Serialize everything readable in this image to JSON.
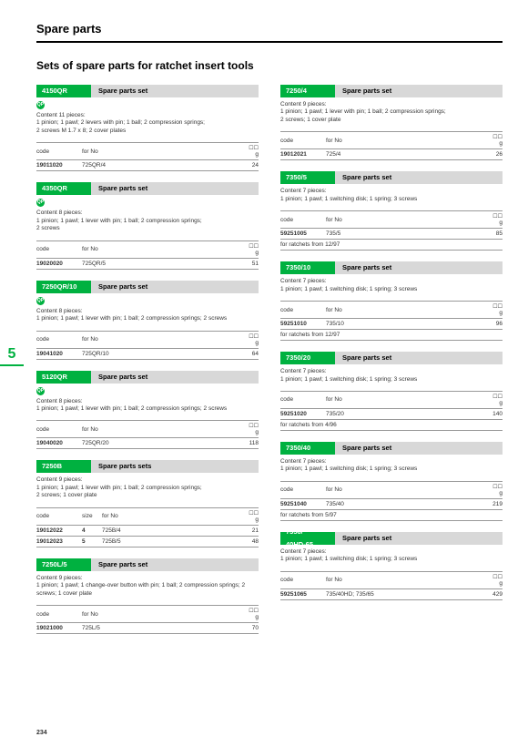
{
  "page_title": "Spare parts",
  "section_title": "Sets of spare parts for ratchet insert tools",
  "side_number": "5",
  "page_number": "234",
  "labels": {
    "code": "code",
    "for_no": "for No",
    "size": "size",
    "g": "g",
    "cart": "☐☐"
  },
  "left": [
    {
      "tag": "4150QR",
      "title": "Spare parts set",
      "badge": true,
      "desc": "Content 11 pieces:\n1 pinion; 1 pawl; 2 levers with pin; 1 ball; 2 compression springs;\n2 screws M 1.7 x 8; 2 cover plates",
      "cols": [
        "code",
        "for_no",
        "g"
      ],
      "rows": [
        [
          "19011020",
          "725QR/4",
          "24"
        ]
      ]
    },
    {
      "tag": "4350QR",
      "title": "Spare parts set",
      "badge": true,
      "desc": "Content 8 pieces:\n1 pinion; 1 pawl; 1 lever with pin; 1 ball; 2  compression springs;\n2 screws",
      "cols": [
        "code",
        "for_no",
        "g"
      ],
      "rows": [
        [
          "19020020",
          "725QR/5",
          "51"
        ]
      ]
    },
    {
      "tag": "7250QR/10",
      "title": "Spare parts set",
      "badge": true,
      "desc": "Content 8 pieces:\n1 pinion; 1 pawl; 1 lever with pin; 1 ball; 2 compression springs; 2 screws",
      "cols": [
        "code",
        "for_no",
        "g"
      ],
      "rows": [
        [
          "19041020",
          "725QR/10",
          "64"
        ]
      ]
    },
    {
      "tag": "5120QR",
      "title": "Spare parts set",
      "badge": true,
      "desc": "Content 8 pieces:\n1 pinion; 1 pawl; 1 lever with pin; 1 ball; 2 compression springs; 2 screws",
      "cols": [
        "code",
        "for_no",
        "g"
      ],
      "rows": [
        [
          "19040020",
          "725QR/20",
          "118"
        ]
      ]
    },
    {
      "tag": "7250B",
      "title": "Spare parts sets",
      "badge": false,
      "desc": "Content 9 pieces:\n1 pinion; 1 pawl; 1 lever with pin; 1 ball; 2 compression springs;\n2 screws; 1 cover plate",
      "cols": [
        "code",
        "size",
        "for_no",
        "g"
      ],
      "rows": [
        [
          "19012022",
          "4",
          "725B/4",
          "21"
        ],
        [
          "19012023",
          "5",
          "725B/5",
          "48"
        ]
      ]
    },
    {
      "tag": "7250L/5",
      "title": "Spare parts set",
      "badge": false,
      "desc": "Content 9 pieces:\n1 pinion; 1 pawl; 1 change-over button with pin; 1 ball; 2 compression springs; 2 screws; 1 cover plate",
      "cols": [
        "code",
        "for_no",
        "g"
      ],
      "rows": [
        [
          "19021000",
          "725L/5",
          "70"
        ]
      ]
    }
  ],
  "right": [
    {
      "tag": "7250/4",
      "title": "Spare parts set",
      "badge": false,
      "desc": "Content 9 pieces:\n1 pinion; 1 pawl; 1 lever with pin; 1 ball; 2 compression springs;\n2 screws; 1 cover plate",
      "cols": [
        "code",
        "for_no",
        "g"
      ],
      "rows": [
        [
          "19012021",
          "725/4",
          "26"
        ]
      ]
    },
    {
      "tag": "7350/5",
      "title": "Spare parts set",
      "badge": false,
      "desc": "Content 7 pieces:\n1 pinion; 1 pawl; 1 switching disk; 1 spring; 3 screws",
      "cols": [
        "code",
        "for_no",
        "g"
      ],
      "rows": [
        [
          "59251005",
          "735/5",
          "85"
        ]
      ],
      "note": "for ratchets from 12/97"
    },
    {
      "tag": "7350/10",
      "title": "Spare parts set",
      "badge": false,
      "desc": "Content 7 pieces:\n1 pinion; 1 pawl; 1 switching disk; 1 spring; 3 screws",
      "cols": [
        "code",
        "for_no",
        "g"
      ],
      "rows": [
        [
          "59251010",
          "735/10",
          "96"
        ]
      ],
      "note": "for ratchets from 12/97"
    },
    {
      "tag": "7350/20",
      "title": "Spare parts set",
      "badge": false,
      "desc": "Content 7 pieces:\n1 pinion; 1 pawl; 1 switching disk; 1 spring; 3 screws",
      "cols": [
        "code",
        "for_no",
        "g"
      ],
      "rows": [
        [
          "59251020",
          "735/20",
          "140"
        ]
      ],
      "note": "for ratchets from 4/96"
    },
    {
      "tag": "7350/40",
      "title": "Spare parts set",
      "badge": false,
      "desc": "Content 7 pieces:\n1 pinion; 1 pawl; 1 switching disk; 1 spring; 3 screws",
      "cols": [
        "code",
        "for_no",
        "g"
      ],
      "rows": [
        [
          "59251040",
          "735/40",
          "219"
        ]
      ],
      "note": "for ratchets from 5/97"
    },
    {
      "tag": "7350/\n40HD-65",
      "title": "Spare parts set",
      "badge": false,
      "desc": "Content 7 pieces:\n1 pinion; 1 pawl; 1 switching disk; 1 spring; 3 screws",
      "cols": [
        "code",
        "for_no",
        "g"
      ],
      "rows": [
        [
          "59251065",
          "735/40HD; 735/65",
          "429"
        ]
      ]
    }
  ]
}
